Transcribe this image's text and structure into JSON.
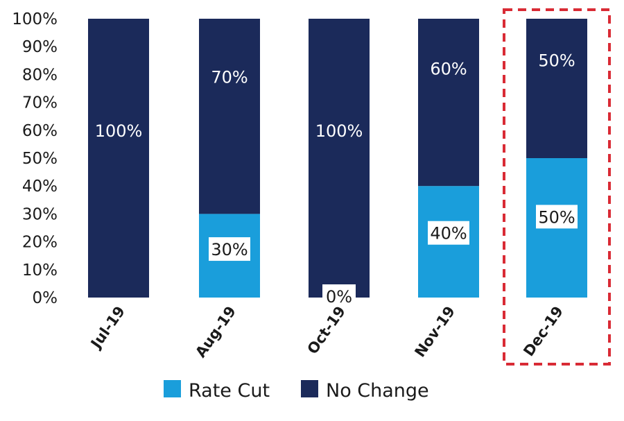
{
  "chart_data": {
    "type": "bar",
    "stacked": true,
    "categories": [
      "Jul-19",
      "Aug-19",
      "Oct-19",
      "Nov-19",
      "Dec-19"
    ],
    "series": [
      {
        "name": "Rate Cut",
        "values": [
          0,
          30,
          0,
          40,
          50
        ],
        "labels": [
          "",
          "30%",
          "0%",
          "40%",
          "50%"
        ]
      },
      {
        "name": "No Change",
        "values": [
          100,
          70,
          100,
          60,
          50
        ],
        "labels": [
          "100%",
          "70%",
          "100%",
          "60%",
          "50%"
        ]
      }
    ],
    "y_ticks": [
      "0%",
      "10%",
      "20%",
      "30%",
      "40%",
      "50%",
      "60%",
      "70%",
      "80%",
      "90%",
      "100%"
    ],
    "ylim": [
      0,
      100
    ],
    "grid": false,
    "legend_position": "bottom",
    "highlighted_category": "Dec-19",
    "colors": {
      "Rate Cut": "#1a9edb",
      "No Change": "#1b2a5a",
      "highlight": "#d92b35"
    }
  }
}
